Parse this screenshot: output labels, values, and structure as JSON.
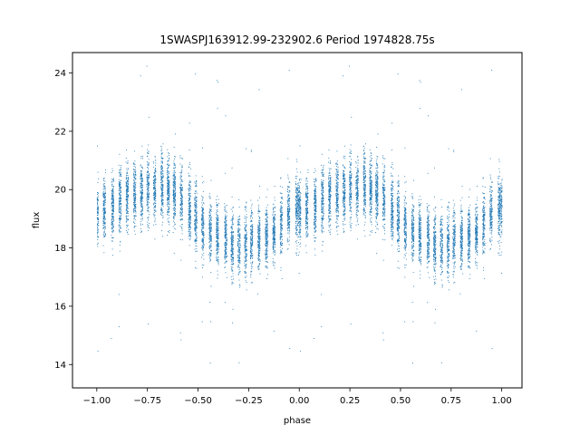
{
  "chart_data": {
    "type": "scatter",
    "title": "1SWASPJ163912.99-232902.6 Period 1974828.75s",
    "xlabel": "phase",
    "ylabel": "flux",
    "xlim": [
      -1.12,
      1.1
    ],
    "ylim": [
      13.2,
      24.7
    ],
    "xticks": [
      -1.0,
      -0.75,
      -0.5,
      -0.25,
      0.0,
      0.25,
      0.5,
      0.75,
      1.0
    ],
    "xtick_labels": [
      "−1.00",
      "−0.75",
      "−0.50",
      "−0.25",
      "0.00",
      "0.25",
      "0.50",
      "0.75",
      "1.00"
    ],
    "yticks": [
      14,
      16,
      18,
      20,
      22,
      24
    ],
    "ytick_labels": [
      "14",
      "16",
      "18",
      "20",
      "22",
      "24"
    ],
    "grid": false,
    "legend": "none",
    "marker_color": "#1f77b4",
    "series": [
      {
        "phase_range": [
          -1.0,
          1.0
        ],
        "profile_phase": [
          0.0,
          0.05,
          0.1,
          0.15,
          0.2,
          0.25,
          0.3,
          0.35,
          0.4,
          0.45,
          0.5,
          0.55,
          0.6,
          0.65,
          0.7,
          0.75,
          0.8,
          0.85,
          0.9,
          0.95,
          1.0
        ],
        "profile_flux": [
          19.2,
          19.4,
          19.5,
          19.8,
          19.9,
          20.0,
          20.1,
          20.0,
          19.8,
          19.4,
          18.9,
          18.6,
          18.4,
          18.2,
          18.1,
          18.2,
          18.3,
          18.4,
          18.8,
          19.3,
          19.4
        ],
        "scatter_half_width": 1.0,
        "outlier_range": [
          13.8,
          24.3
        ]
      }
    ]
  }
}
